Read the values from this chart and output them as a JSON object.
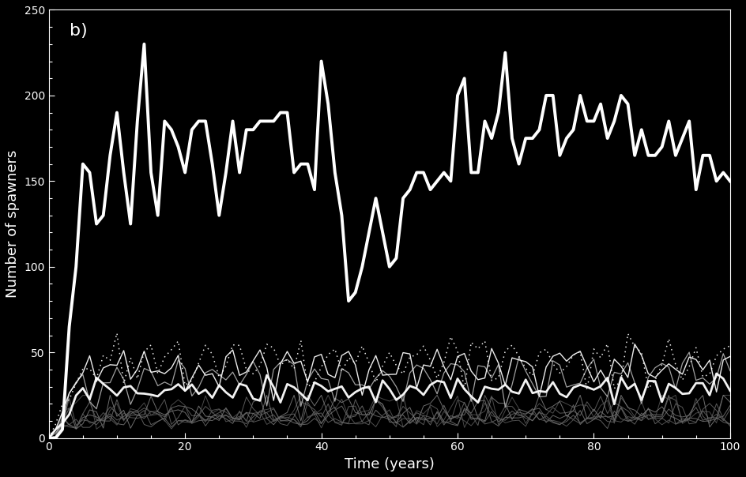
{
  "title": "b)",
  "xlabel": "Time (years)",
  "ylabel": "Number of spawners",
  "xlim": [
    0,
    100
  ],
  "ylim": [
    0,
    250
  ],
  "background_color": "#000000",
  "text_color": "#ffffff",
  "yticks": [
    0,
    50,
    100,
    150,
    200,
    250
  ],
  "xticks": [
    0,
    20,
    40,
    60,
    80,
    100
  ]
}
